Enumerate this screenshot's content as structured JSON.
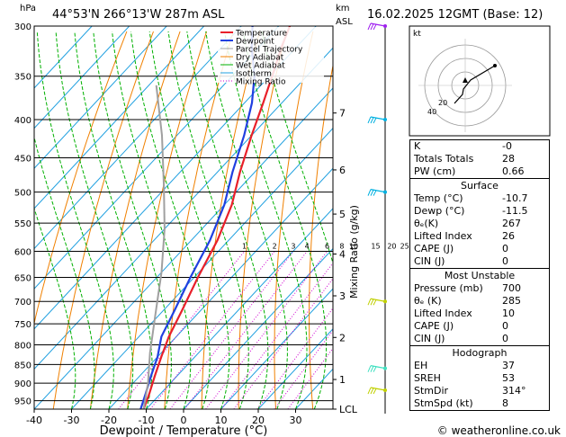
{
  "header": {
    "location": "44°53'N  266°13'W  287m  ASL",
    "datetime": "16.02.2025  12GMT  (Base: 12)",
    "left_unit": "hPa",
    "right_unit_top": "km",
    "right_unit_bottom": "ASL"
  },
  "chart_data": {
    "type": "line",
    "title": "",
    "xlabel": "Dewpoint / Temperature (°C)",
    "ylabel_left": "hPa",
    "ylabel_right": "Mixing Ratio (g/kg)",
    "xlim": [
      -40,
      40
    ],
    "x_ticks": [
      "-40",
      "-30",
      "-20",
      "-10",
      "0",
      "10",
      "20",
      "30"
    ],
    "pressure_levels": [
      "300",
      "350",
      "400",
      "450",
      "500",
      "550",
      "600",
      "650",
      "700",
      "750",
      "800",
      "850",
      "900",
      "950"
    ],
    "altitude_km": [
      {
        "label": "7",
        "p": 392
      },
      {
        "label": "6",
        "p": 467
      },
      {
        "label": "5",
        "p": 535
      },
      {
        "label": "4",
        "p": 605
      },
      {
        "label": "3",
        "p": 688
      },
      {
        "label": "2",
        "p": 782
      },
      {
        "label": "1",
        "p": 890
      },
      {
        "label": "LCL",
        "p": 975
      }
    ],
    "mixing_ratio_labels": [
      "1",
      "2",
      "3",
      "4",
      "6",
      "8",
      "10",
      "15",
      "20",
      "25"
    ],
    "series": [
      {
        "name": "Temperature",
        "color": "#e8202a",
        "points": [
          [
            -10.7,
            975
          ],
          [
            -13,
            930
          ],
          [
            -16,
            880
          ],
          [
            -19,
            830
          ],
          [
            -22,
            780
          ],
          [
            -25,
            720
          ],
          [
            -29,
            650
          ],
          [
            -33,
            580
          ],
          [
            -38,
            520
          ],
          [
            -44,
            470
          ],
          [
            -50,
            420
          ],
          [
            -55,
            380
          ],
          [
            -60,
            345
          ],
          [
            -64,
            320
          ],
          [
            -67,
            300
          ]
        ]
      },
      {
        "name": "Dewpoint",
        "color": "#2040e0",
        "points": [
          [
            -11.5,
            975
          ],
          [
            -14,
            930
          ],
          [
            -17,
            880
          ],
          [
            -20,
            830
          ],
          [
            -24,
            780
          ],
          [
            -27,
            720
          ],
          [
            -31,
            650
          ],
          [
            -35,
            580
          ],
          [
            -40,
            520
          ],
          [
            -46,
            470
          ],
          [
            -52,
            420
          ],
          [
            -58,
            380
          ],
          [
            -64,
            350
          ],
          [
            -72,
            320
          ],
          [
            -77,
            300
          ]
        ]
      },
      {
        "name": "Parcel Trajectory",
        "color": "#a0a0a0",
        "points": [
          [
            -10.7,
            975
          ],
          [
            -16,
            900
          ],
          [
            -23,
            820
          ],
          [
            -31,
            730
          ],
          [
            -40,
            640
          ],
          [
            -50,
            560
          ],
          [
            -61,
            490
          ],
          [
            -74,
            420
          ],
          [
            -88,
            360
          ]
        ]
      },
      {
        "name": "Dry Adiabat",
        "color": "#f08000",
        "points": []
      },
      {
        "name": "Wet Adiabat",
        "color": "#00b000",
        "points": []
      },
      {
        "name": "Isotherm",
        "color": "#20a0e0",
        "points": []
      },
      {
        "name": "Mixing Ratio",
        "color": "#d000d0",
        "points": []
      }
    ]
  },
  "winds": {
    "color_barbs": [
      "#a020f0",
      "#00b0e0",
      "#00b0e0",
      "#c0d000",
      "#40e0c0",
      "#c0d000"
    ]
  },
  "hodograph": {
    "label": "kt",
    "ring_labels": [
      "20",
      "40"
    ]
  },
  "indices": [
    {
      "label": "K",
      "value": "-0"
    },
    {
      "label": "Totals Totals",
      "value": "28"
    },
    {
      "label": "PW (cm)",
      "value": "0.66"
    }
  ],
  "surface": {
    "title": "Surface",
    "rows": [
      {
        "label": "Temp (°C)",
        "value": "-10.7"
      },
      {
        "label": "Dewp (°C)",
        "value": "-11.5"
      },
      {
        "label": "θₑ(K)",
        "value": "267"
      },
      {
        "label": "Lifted Index",
        "value": "26"
      },
      {
        "label": "CAPE (J)",
        "value": "0"
      },
      {
        "label": "CIN (J)",
        "value": "0"
      }
    ]
  },
  "most_unstable": {
    "title": "Most Unstable",
    "rows": [
      {
        "label": "Pressure (mb)",
        "value": "700"
      },
      {
        "label": "θₑ (K)",
        "value": "285"
      },
      {
        "label": "Lifted Index",
        "value": "10"
      },
      {
        "label": "CAPE (J)",
        "value": "0"
      },
      {
        "label": "CIN (J)",
        "value": "0"
      }
    ]
  },
  "hodograph_table": {
    "title": "Hodograph",
    "rows": [
      {
        "label": "EH",
        "value": "37"
      },
      {
        "label": "SREH",
        "value": "53"
      },
      {
        "label": "StmDir",
        "value": "314°"
      },
      {
        "label": "StmSpd (kt)",
        "value": "8"
      }
    ]
  },
  "footer": {
    "copyright": "© weatheronline.co.uk"
  }
}
